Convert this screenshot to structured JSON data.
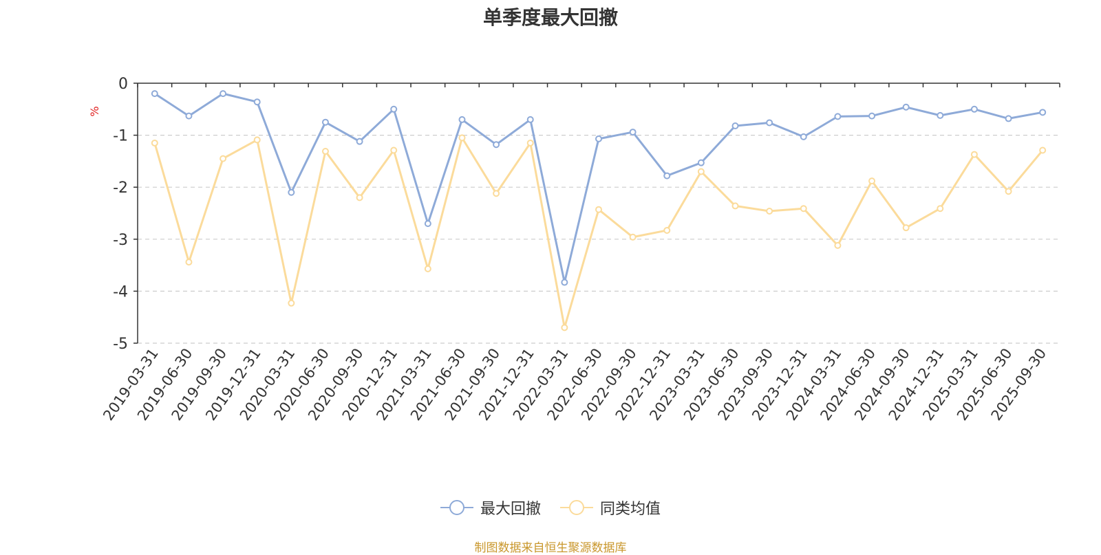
{
  "chart_data": {
    "type": "line",
    "title": "单季度最大回撤",
    "ylabel": "%",
    "xlabel": "",
    "ylim": [
      -5,
      0
    ],
    "yticks": [
      0,
      -1,
      -2,
      -3,
      -4,
      -5
    ],
    "grid": true,
    "legend_position": "bottom",
    "categories": [
      "2019-03-31",
      "2019-06-30",
      "2019-09-30",
      "2019-12-31",
      "2020-03-31",
      "2020-06-30",
      "2020-09-30",
      "2020-12-31",
      "2021-03-31",
      "2021-06-30",
      "2021-09-30",
      "2021-12-31",
      "2022-03-31",
      "2022-06-30",
      "2022-09-30",
      "2022-12-31",
      "2023-03-31",
      "2023-06-30",
      "2023-09-30",
      "2023-12-31",
      "2024-03-31",
      "2024-06-30",
      "2024-09-30",
      "2024-12-31",
      "2025-03-31",
      "2025-06-30",
      "2025-09-30"
    ],
    "series": [
      {
        "name": "最大回撤",
        "color": "#8eaad8",
        "values": [
          -0.2,
          -0.63,
          -0.2,
          -0.36,
          -2.1,
          -0.75,
          -1.12,
          -0.5,
          -2.7,
          -0.7,
          -1.18,
          -0.7,
          -3.83,
          -1.07,
          -0.94,
          -1.78,
          -1.53,
          -0.82,
          -0.76,
          -1.03,
          -0.64,
          -0.63,
          -0.46,
          -0.62,
          -0.5,
          -0.68,
          -0.56
        ]
      },
      {
        "name": "同类均值",
        "color": "#fbdb9b",
        "values": [
          -1.15,
          -3.44,
          -1.45,
          -1.09,
          -4.23,
          -1.31,
          -2.2,
          -1.29,
          -3.57,
          -1.05,
          -2.12,
          -1.15,
          -4.7,
          -2.43,
          -2.96,
          -2.83,
          -1.7,
          -2.36,
          -2.46,
          -2.41,
          -3.12,
          -1.88,
          -2.78,
          -2.41,
          -1.37,
          -2.08,
          -1.29
        ]
      }
    ]
  },
  "source_note": "制图数据来自恒生聚源数据库"
}
